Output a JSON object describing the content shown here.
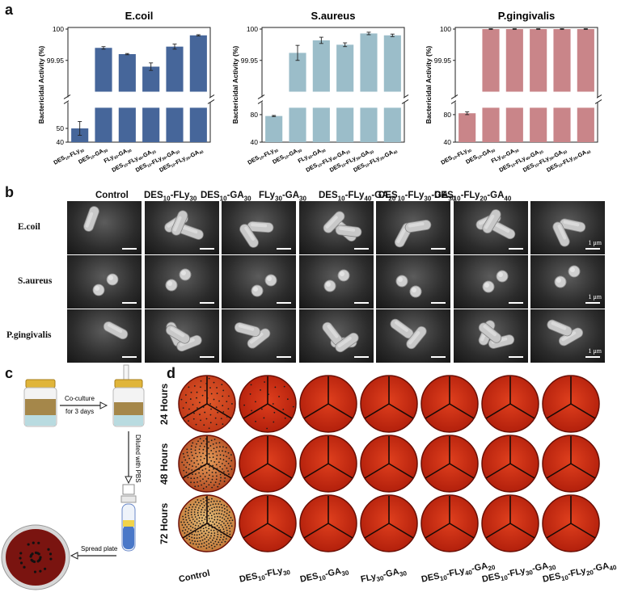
{
  "panels": {
    "a": "a",
    "b": "b",
    "c": "c",
    "d": "d"
  },
  "chart_data": [
    {
      "type": "bar",
      "title": "E.coil",
      "ylabel": "Bactericidal Activity (%)",
      "categories": [
        "DES10-FLy30",
        "DES10-GA30",
        "FLy30-GA30",
        "DES10-FLy40-GA20",
        "DES10-FLy30-GA30",
        "DES10-FLy20-GA40"
      ],
      "values": [
        50,
        99.97,
        99.96,
        99.94,
        99.972,
        99.99
      ],
      "errors": [
        5,
        0.002,
        0.001,
        0.006,
        0.004,
        0.001
      ],
      "color": "#46669a",
      "broken_axis": true,
      "lower_ticks": [
        "40",
        "50"
      ],
      "upper_ticks": [
        "99.95",
        "100"
      ]
    },
    {
      "type": "bar",
      "title": "S.aureus",
      "ylabel": "Bactericidal Activity (%)",
      "categories": [
        "DES10-FLy30",
        "DES10-GA30",
        "FLy30-GA30",
        "DES10-FLy40-GA20",
        "DES10-FLy30-GA30",
        "DES10-FLy20-GA40"
      ],
      "values": [
        78,
        99.962,
        99.982,
        99.975,
        99.993,
        99.99
      ],
      "errors": [
        0.8,
        0.012,
        0.005,
        0.003,
        0.002,
        0.002
      ],
      "color": "#9bbdc9",
      "broken_axis": true,
      "lower_ticks": [
        "40",
        "80"
      ],
      "upper_ticks": [
        "99.95",
        "100"
      ]
    },
    {
      "type": "bar",
      "title": "P.gingivalis",
      "ylabel": "Bactericidal Activity (%)",
      "categories": [
        "DES10-FLy30",
        "DES10-GA30",
        "FLy30-GA30",
        "DES10-FLy40-GA20",
        "DES10-FLy30-GA30",
        "DES10-FLy20-GA40"
      ],
      "values": [
        82,
        100,
        100,
        100,
        100,
        100
      ],
      "errors": [
        2,
        0.0005,
        0.0005,
        0.0005,
        0.0005,
        0.0005
      ],
      "color": "#c98589",
      "broken_axis": true,
      "lower_ticks": [
        "40",
        "80"
      ],
      "upper_ticks": [
        "99.95",
        "100"
      ]
    }
  ],
  "sem": {
    "columns": [
      {
        "base": "Control",
        "parts": []
      },
      {
        "parts": [
          [
            "DES",
            "10"
          ],
          [
            "-FLy",
            "30"
          ]
        ]
      },
      {
        "parts": [
          [
            "DES",
            "10"
          ],
          [
            "-GA",
            "30"
          ]
        ]
      },
      {
        "parts": [
          [
            "FLy",
            "30"
          ],
          [
            "-GA",
            "30"
          ]
        ]
      },
      {
        "parts": [
          [
            "DES",
            "10"
          ],
          [
            "-FLy",
            "40"
          ],
          [
            "-GA",
            "20"
          ]
        ]
      },
      {
        "parts": [
          [
            "DES",
            "10"
          ],
          [
            "-FLy",
            "30"
          ],
          [
            "-GA",
            "30"
          ]
        ]
      },
      {
        "parts": [
          [
            "DES",
            "10"
          ],
          [
            "-FLy",
            "20"
          ],
          [
            "-GA",
            "40"
          ]
        ]
      }
    ],
    "rows": [
      "E.coil",
      "S.aureus",
      "P.gingivalis"
    ],
    "scale": "1 μm"
  },
  "panel_c": {
    "step1": "Co-culture",
    "step1b": "for 3 days",
    "step2": "Diluted with PBS",
    "step3": "Spread plate"
  },
  "panel_d": {
    "rows": [
      "24 Hours",
      "48 Hours",
      "72 Hours"
    ],
    "columns": [
      {
        "base": "Control",
        "parts": []
      },
      {
        "parts": [
          [
            "DES",
            "10"
          ],
          [
            "-FLy",
            "30"
          ]
        ]
      },
      {
        "parts": [
          [
            "DES",
            "10"
          ],
          [
            "-GA",
            "30"
          ]
        ]
      },
      {
        "parts": [
          [
            "FLy",
            "30"
          ],
          [
            "-GA",
            "30"
          ]
        ]
      },
      {
        "parts": [
          [
            "DES",
            "10"
          ],
          [
            "-FLy",
            "40"
          ],
          [
            "-GA",
            "20"
          ]
        ]
      },
      {
        "parts": [
          [
            "DES",
            "10"
          ],
          [
            "-FLy",
            "30"
          ],
          [
            "-GA",
            "30"
          ]
        ]
      },
      {
        "parts": [
          [
            "DES",
            "10"
          ],
          [
            "-FLy",
            "20"
          ],
          [
            "-GA",
            "40"
          ]
        ]
      }
    ]
  }
}
